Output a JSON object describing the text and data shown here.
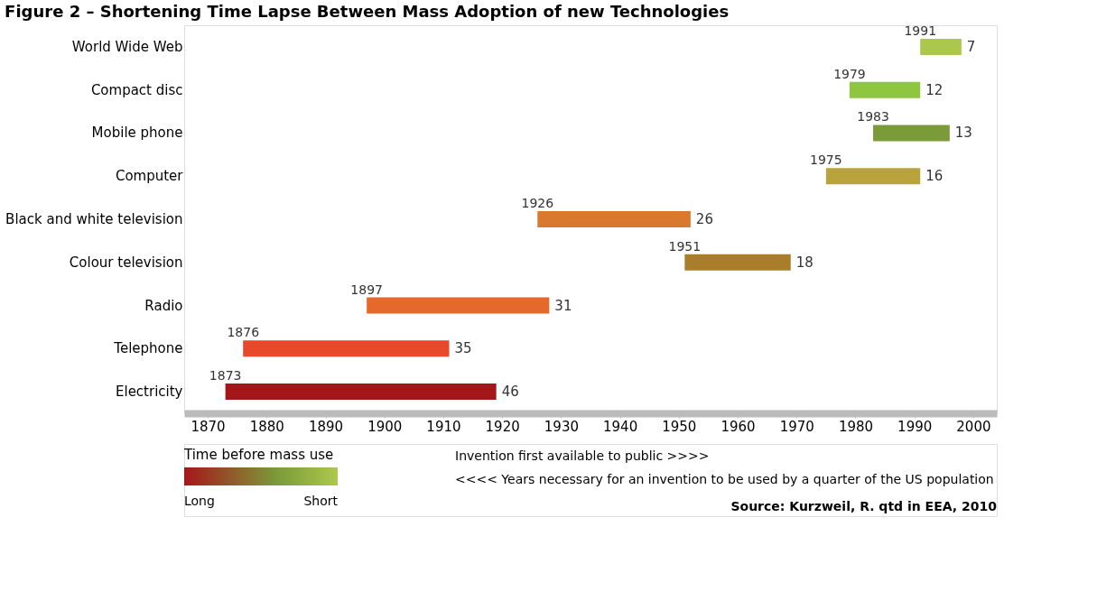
{
  "chart_data": {
    "type": "bar",
    "orientation": "horizontal",
    "title": "Figure 2 – Shortening Time Lapse Between Mass Adoption of new Technologies",
    "categories": [
      "World Wide Web",
      "Compact disc",
      "Mobile phone",
      "Computer",
      "Black and white television",
      "Colour television",
      "Radio",
      "Telephone",
      "Electricity"
    ],
    "base": [
      1991,
      1979,
      1983,
      1975,
      1926,
      1951,
      1897,
      1876,
      1873
    ],
    "values": [
      7,
      12,
      13,
      16,
      26,
      18,
      31,
      35,
      46
    ],
    "colors": [
      "#acc84c",
      "#8ec63f",
      "#7b9a3a",
      "#b9a33c",
      "#d9782f",
      "#a97d2a",
      "#e4692a",
      "#e8492b",
      "#a5161b"
    ],
    "data_labels": true,
    "xlim": [
      1866,
      2004
    ],
    "xticks": [
      1870,
      1880,
      1890,
      1900,
      1910,
      1920,
      1930,
      1940,
      1950,
      1960,
      1970,
      1980,
      1990,
      2000
    ],
    "grid": false,
    "clabel": "Time before mass use",
    "annotations": [
      "Long",
      "Short",
      "Invention first available to public >>>>",
      "<<<< Years necessary for an invention to be used by a quarter of the US population",
      "Source: Kurzweil, R. qtd in EEA, 2010",
      {
        "text": "1991",
        "x": 1991,
        "y": "World Wide Web"
      },
      {
        "text": "1979",
        "x": 1979,
        "y": "Compact disc"
      },
      {
        "text": "1983",
        "x": 1983,
        "y": "Mobile phone"
      },
      {
        "text": "1975",
        "x": 1975,
        "y": "Computer"
      },
      {
        "text": "1926",
        "x": 1926,
        "y": "Black and white television"
      },
      {
        "text": "1951",
        "x": 1951,
        "y": "Colour television"
      },
      {
        "text": "1897",
        "x": 1897,
        "y": "Radio"
      },
      {
        "text": "1876",
        "x": 1876,
        "y": "Telephone"
      },
      {
        "text": "1873",
        "x": 1873,
        "y": "Electricity"
      }
    ]
  }
}
